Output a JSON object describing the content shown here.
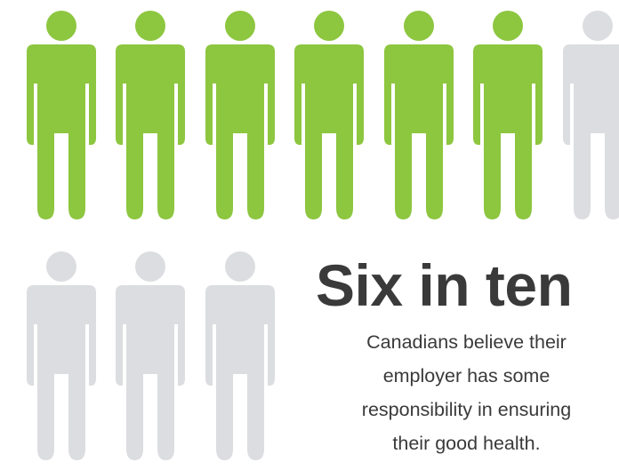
{
  "stat": {
    "value": 6,
    "total": 10,
    "highlight_color": "#8dc63f",
    "base_color": "#dcdde0"
  },
  "headline": "Six in ten",
  "caption": {
    "line1": "Canadians believe their",
    "line2": "employer has some",
    "line3": "responsibility in ensuring",
    "line4": "their good health."
  },
  "icon": "person-icon"
}
